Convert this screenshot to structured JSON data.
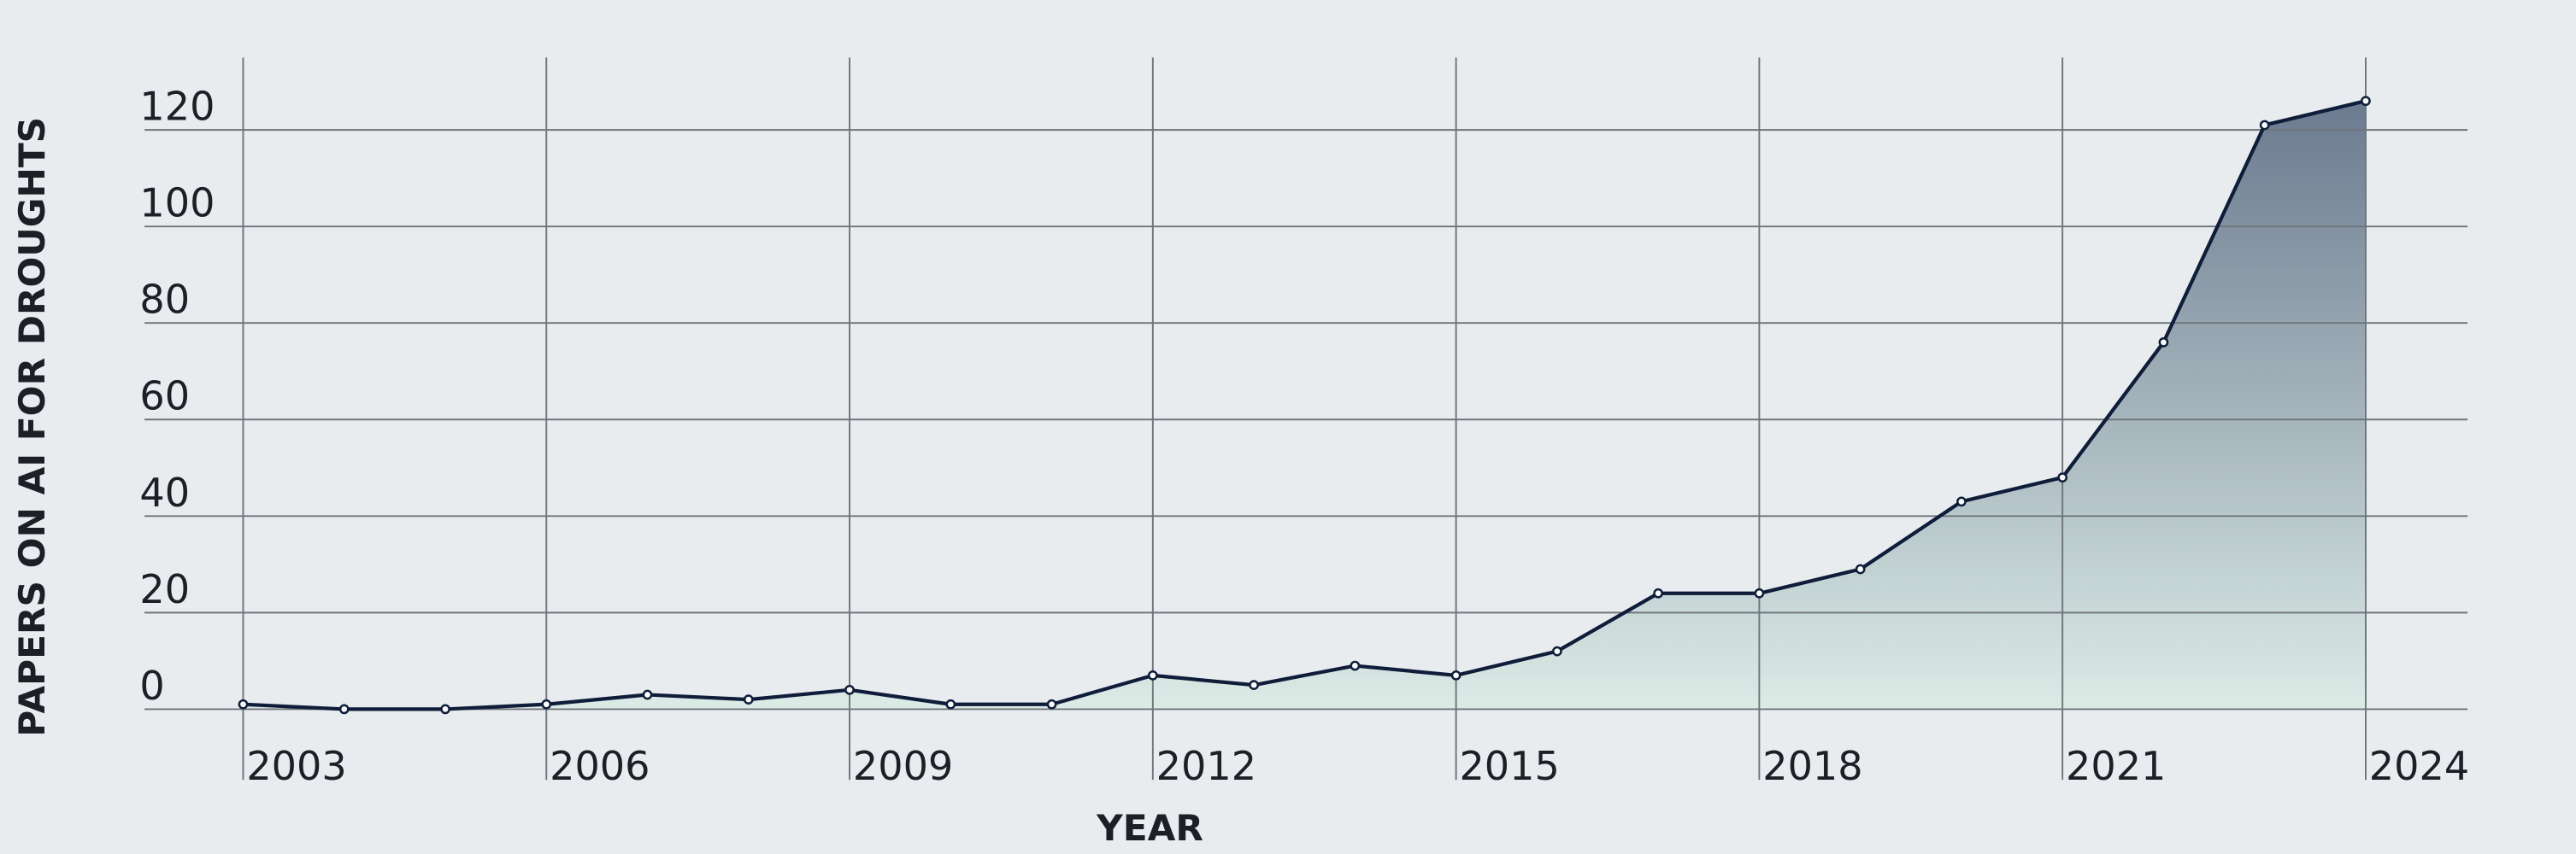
{
  "chart_data": {
    "type": "line",
    "x_label": "YEAR",
    "y_label": "PAPERS ON AI FOR DROUGHTS",
    "x": [
      2003,
      2004,
      2005,
      2006,
      2007,
      2008,
      2009,
      2010,
      2011,
      2012,
      2013,
      2014,
      2015,
      2016,
      2017,
      2018,
      2019,
      2020,
      2021,
      2022,
      2023,
      2024
    ],
    "values": [
      1,
      0,
      0,
      1,
      3,
      2,
      4,
      1,
      1,
      7,
      5,
      9,
      7,
      12,
      24,
      24,
      29,
      43,
      48,
      76,
      121,
      126
    ],
    "color": "#0f1d3a",
    "fill_gradient": [
      "#6b7a8f",
      "#dcebe6"
    ],
    "xlim": [
      2003,
      2024
    ],
    "ylim": [
      0,
      135
    ],
    "xticks": [
      2003,
      2006,
      2009,
      2012,
      2015,
      2018,
      2021,
      2024
    ],
    "yticks": [
      0,
      20,
      40,
      60,
      80,
      100,
      120
    ],
    "grid": true
  }
}
